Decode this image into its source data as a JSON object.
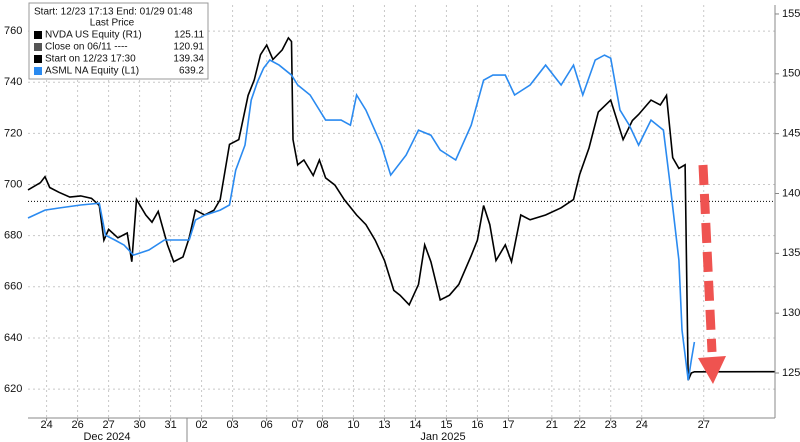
{
  "chart_data": {
    "type": "line",
    "legend_title": "Start: 12/23 17:13 End: 01/29 01:48",
    "legend_subtitle": "Last Price",
    "legend_corner": "top-left",
    "grid": true,
    "xlim": [
      0,
      24.1
    ],
    "xticks": [
      {
        "value": 0.6,
        "label": "24"
      },
      {
        "value": 1.6,
        "label": "26"
      },
      {
        "value": 2.6,
        "label": "27"
      },
      {
        "value": 3.6,
        "label": "30"
      },
      {
        "value": 4.6,
        "label": "31"
      },
      {
        "value": 5.6,
        "label": "02"
      },
      {
        "value": 6.6,
        "label": "03"
      },
      {
        "value": 7.7,
        "label": "06"
      },
      {
        "value": 8.7,
        "label": "07"
      },
      {
        "value": 9.5,
        "label": "08"
      },
      {
        "value": 10.5,
        "label": "10"
      },
      {
        "value": 11.5,
        "label": "13"
      },
      {
        "value": 12.5,
        "label": "14"
      },
      {
        "value": 13.5,
        "label": "15"
      },
      {
        "value": 14.5,
        "label": "16"
      },
      {
        "value": 15.5,
        "label": "17"
      },
      {
        "value": 16.9,
        "label": "21"
      },
      {
        "value": 17.8,
        "label": "22"
      },
      {
        "value": 18.8,
        "label": "23"
      },
      {
        "value": 19.8,
        "label": "24"
      },
      {
        "value": 21.8,
        "label": "27"
      }
    ],
    "x_groups": [
      "Dec 2024",
      "Jan 2025"
    ],
    "ylim": [
      608.7,
      770.2
    ],
    "yticks": [
      620,
      640,
      660,
      680,
      700,
      720,
      740,
      760
    ],
    "y2lim": [
      121.24,
      155.75
    ],
    "y2ticks": [
      125,
      130,
      135,
      140,
      145,
      150,
      155
    ],
    "reference_lines": [
      {
        "label": "Close on 06/11 ----",
        "value": 120.91,
        "axis": "y2",
        "color": "#555555",
        "style": "dashed"
      },
      {
        "label": "Start on 12/23 17:30",
        "value": 139.34,
        "axis": "y2",
        "color": "#000000",
        "style": "dotted"
      }
    ],
    "series": [
      {
        "name": "NVDA US Equity  (R1)",
        "color": "#000000",
        "axis": "y2",
        "last": 125.11,
        "x": [
          0,
          0.4,
          0.55,
          0.7,
          1.0,
          1.35,
          1.7,
          2.05,
          2.3,
          2.45,
          2.6,
          2.9,
          3.2,
          3.35,
          3.5,
          3.8,
          4.0,
          4.2,
          4.5,
          4.7,
          5.0,
          5.2,
          5.4,
          5.7,
          6.0,
          6.2,
          6.5,
          6.8,
          7.1,
          7.3,
          7.5,
          7.7,
          7.9,
          8.2,
          8.4,
          8.5,
          8.55,
          8.7,
          8.9,
          9.2,
          9.4,
          9.6,
          9.9,
          10.2,
          10.6,
          10.9,
          11.2,
          11.5,
          11.8,
          12.0,
          12.3,
          12.6,
          12.8,
          13.0,
          13.3,
          13.6,
          13.9,
          14.3,
          14.5,
          14.7,
          14.9,
          15.1,
          15.4,
          15.6,
          15.9,
          16.2,
          16.7,
          17.2,
          17.6,
          17.8,
          18.1,
          18.4,
          18.8,
          19.2,
          19.5,
          19.7,
          20.1,
          20.4,
          20.6,
          20.8,
          21.0,
          21.2,
          21.3,
          21.4,
          21.5,
          24.1
        ],
        "values": [
          140.3,
          140.9,
          141.4,
          140.5,
          140.1,
          139.7,
          139.8,
          139.6,
          139.0,
          136.1,
          137.0,
          136.3,
          136.7,
          134.3,
          139.5,
          138.2,
          137.6,
          138.5,
          135.7,
          134.3,
          134.7,
          136.3,
          138.6,
          138.2,
          138.6,
          139.5,
          144.1,
          144.5,
          148.2,
          149.5,
          151.6,
          152.4,
          151.2,
          152.0,
          153.0,
          152.7,
          144.5,
          142.4,
          142.8,
          141.5,
          142.8,
          141.3,
          140.7,
          139.5,
          138.2,
          137.4,
          136.1,
          134.4,
          131.9,
          131.5,
          130.7,
          132.4,
          135.7,
          134.3,
          131.1,
          131.5,
          132.4,
          134.8,
          136.1,
          139.0,
          137.4,
          134.4,
          135.7,
          134.3,
          138.2,
          137.8,
          138.2,
          138.8,
          139.5,
          141.6,
          143.8,
          146.8,
          147.8,
          144.5,
          146.1,
          146.6,
          147.8,
          147.4,
          148.2,
          143.0,
          142.1,
          142.4,
          124.4,
          125.0,
          125.1,
          125.11
        ]
      },
      {
        "name": "ASML NA Equity  (L1)",
        "color": "#2a8af0",
        "axis": "y",
        "last": 639.2,
        "x": [
          0,
          0.55,
          1.0,
          1.7,
          2.3,
          2.5,
          2.8,
          3.1,
          3.4,
          3.6,
          3.9,
          4.4,
          4.8,
          5.2,
          5.4,
          5.7,
          6.2,
          6.5,
          6.7,
          7.0,
          7.2,
          7.4,
          7.6,
          7.8,
          8.1,
          8.5,
          8.7,
          9.1,
          9.6,
          10.1,
          10.4,
          10.6,
          10.9,
          11.4,
          11.7,
          12.2,
          12.6,
          13.0,
          13.3,
          13.8,
          14.3,
          14.7,
          15.0,
          15.4,
          15.7,
          16.2,
          16.7,
          17.2,
          17.6,
          17.9,
          18.3,
          18.6,
          18.8,
          19.1,
          19.4,
          19.7,
          20.1,
          20.5,
          20.7,
          21.0,
          21.1,
          21.3,
          21.4,
          21.5
        ],
        "values": [
          686.9,
          690.0,
          690.8,
          692.0,
          692.7,
          680.2,
          678.3,
          676.3,
          672.4,
          673.2,
          674.4,
          678.3,
          678.3,
          678.3,
          686.1,
          688.0,
          690.0,
          692.0,
          705.6,
          715.4,
          733.0,
          740.1,
          745.5,
          748.7,
          746.7,
          742.8,
          738.9,
          735.0,
          725.2,
          725.2,
          723.2,
          735.0,
          729.1,
          715.4,
          703.7,
          711.5,
          721.3,
          719.3,
          713.5,
          709.6,
          723.2,
          740.8,
          742.8,
          742.8,
          735.0,
          738.9,
          746.7,
          738.9,
          746.7,
          735.0,
          748.7,
          750.6,
          749.4,
          729.1,
          723.2,
          715.4,
          725.2,
          721.3,
          701.7,
          670.4,
          643.1,
          623.5,
          631.3,
          638.4
        ]
      }
    ]
  }
}
